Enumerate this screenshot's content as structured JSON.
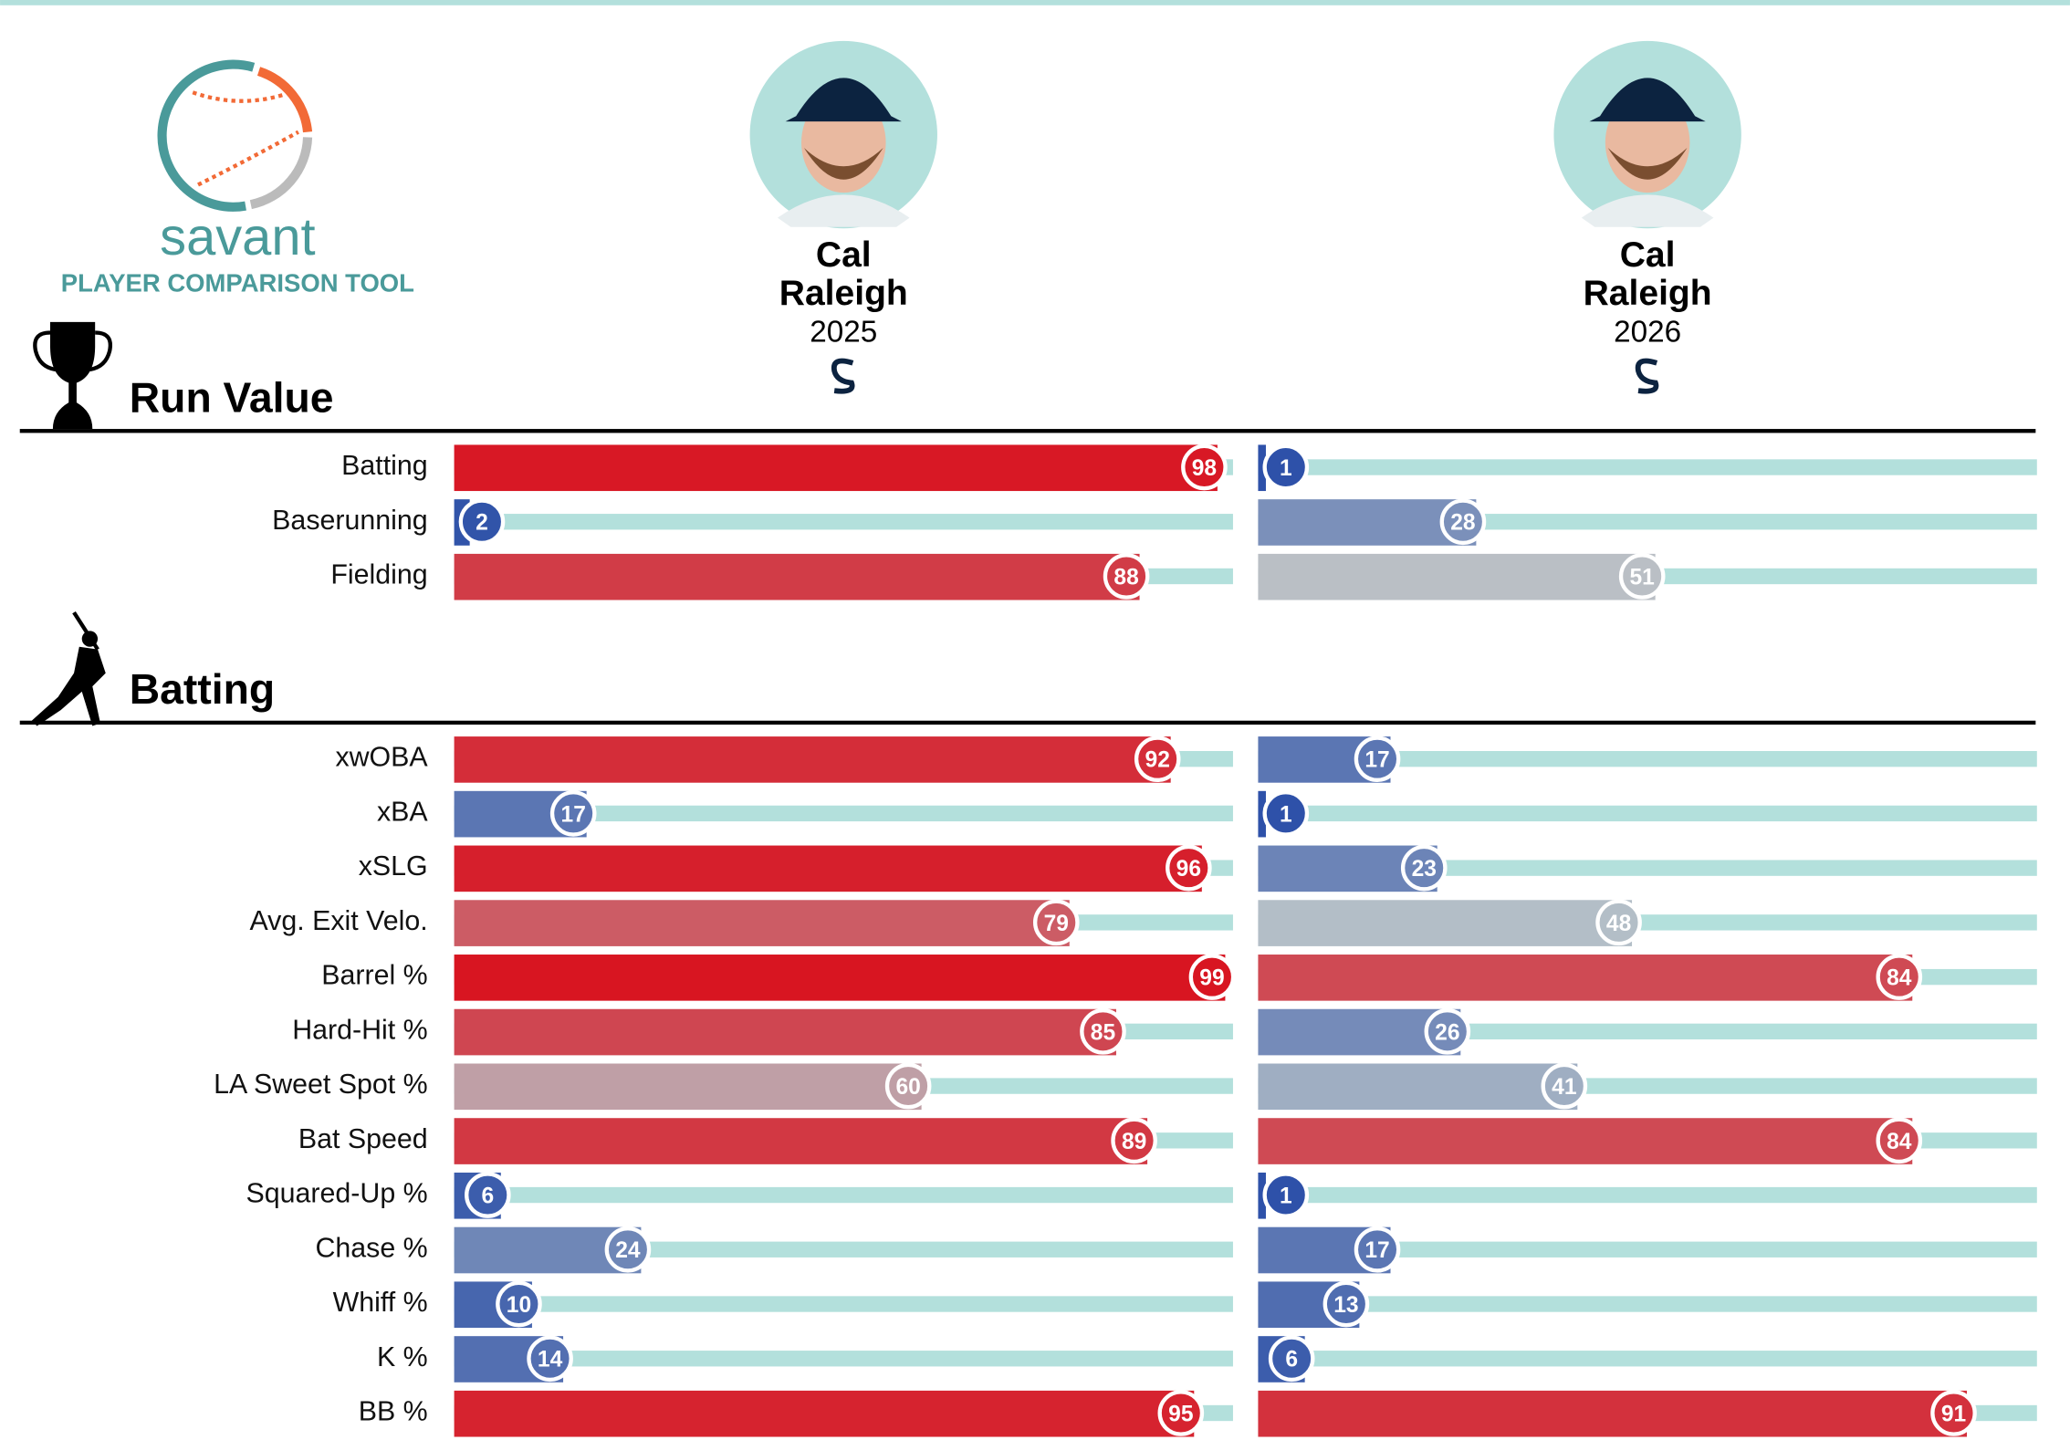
{
  "header": {
    "logo_text": "savant",
    "subtitle": "PLAYER COMPARISON TOOL"
  },
  "players": [
    {
      "first_name": "Cal",
      "last_name": "Raleigh",
      "season": 2025
    },
    {
      "first_name": "Cal",
      "last_name": "Raleigh",
      "season": 2026
    }
  ],
  "sections": [
    {
      "title": "Run Value",
      "rows": [
        {
          "label": "Batting",
          "percentiles": [
            98,
            1
          ]
        },
        {
          "label": "Baserunning",
          "percentiles": [
            2,
            28
          ]
        },
        {
          "label": "Fielding",
          "percentiles": [
            88,
            51
          ]
        }
      ]
    },
    {
      "title": "Batting",
      "rows": [
        {
          "label": "xwOBA",
          "percentiles": [
            92,
            17
          ]
        },
        {
          "label": "xBA",
          "percentiles": [
            17,
            1
          ]
        },
        {
          "label": "xSLG",
          "percentiles": [
            96,
            23
          ]
        },
        {
          "label": "Avg. Exit Velo.",
          "percentiles": [
            79,
            48
          ]
        },
        {
          "label": "Barrel %",
          "percentiles": [
            99,
            84
          ]
        },
        {
          "label": "Hard-Hit %",
          "percentiles": [
            85,
            26
          ]
        },
        {
          "label": "LA Sweet Spot %",
          "percentiles": [
            60,
            41
          ]
        },
        {
          "label": "Bat Speed",
          "percentiles": [
            89,
            84
          ]
        },
        {
          "label": "Squared-Up %",
          "percentiles": [
            6,
            1
          ]
        },
        {
          "label": "Chase %",
          "percentiles": [
            24,
            17
          ]
        },
        {
          "label": "Whiff %",
          "percentiles": [
            10,
            13
          ]
        },
        {
          "label": "K %",
          "percentiles": [
            14,
            6
          ]
        },
        {
          "label": "BB %",
          "percentiles": [
            95,
            91
          ]
        }
      ]
    }
  ]
}
